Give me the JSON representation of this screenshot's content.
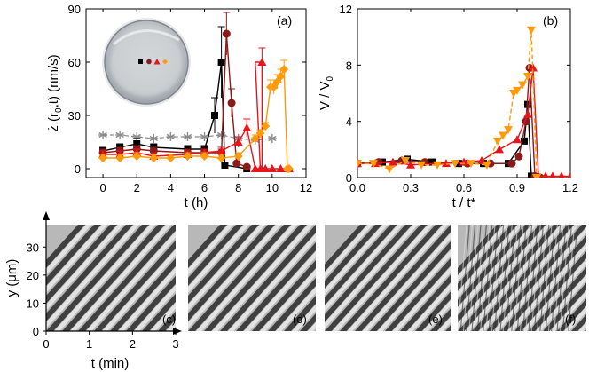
{
  "colors": {
    "black": "#000000",
    "darkred": "#8b1a1a",
    "red": "#e8141c",
    "orange": "#ff9a0a",
    "grey": "#8c8c8c"
  },
  "chart_data": [
    {
      "id": "a",
      "type": "line",
      "panel_label": "(a)",
      "xlabel": "t (h)",
      "ylabel_main": "ż (r",
      "ylabel_sub": "0",
      "ylabel_tail": ",t) (nm/s)",
      "xlim": [
        -1,
        12
      ],
      "ylim": [
        -5,
        90
      ],
      "xticks": [
        "0",
        "2",
        "4",
        "6",
        "8",
        "10",
        "12"
      ],
      "xtick_values": [
        0,
        2,
        4,
        6,
        8,
        10,
        12
      ],
      "yticks": [
        "0",
        "30",
        "60",
        "90"
      ],
      "ytick_values": [
        0,
        30,
        60,
        90
      ],
      "inset": "photo of petri dish with four colored marker dots",
      "series": [
        {
          "color": "grey",
          "marker": "asterisk",
          "dashed": true,
          "x": [
            0,
            1,
            2,
            3,
            4,
            5,
            6,
            7,
            8,
            9,
            10
          ],
          "y": [
            19,
            19,
            18,
            17,
            18,
            18,
            18,
            19,
            17,
            16,
            17
          ]
        },
        {
          "color": "black",
          "marker": "square",
          "x": [
            0,
            1,
            2,
            3,
            5,
            6,
            6.6,
            7.0,
            7.2,
            8.5
          ],
          "y": [
            10,
            12,
            14,
            12,
            11,
            11,
            30,
            60,
            2,
            0
          ],
          "err": [
            2,
            2,
            3,
            2,
            2,
            2,
            10,
            20,
            1,
            0
          ]
        },
        {
          "color": "darkred",
          "marker": "circle",
          "x": [
            0,
            1,
            2,
            3,
            5,
            6,
            7,
            7.3,
            7.6,
            7.9,
            8.5
          ],
          "y": [
            9,
            10,
            11,
            10,
            9,
            9,
            9,
            76,
            37,
            3,
            1
          ],
          "err": [
            2,
            2,
            2,
            2,
            2,
            2,
            2,
            12,
            8,
            1,
            0
          ]
        },
        {
          "color": "red",
          "marker": "triangle",
          "x": [
            0,
            1,
            2,
            3,
            5,
            6,
            7,
            8,
            8.5,
            9,
            9.3,
            9.6,
            10,
            10.5,
            11
          ],
          "y": [
            8,
            8,
            9,
            7,
            8,
            9,
            10,
            15,
            23,
            0,
            0,
            0,
            0,
            0,
            0
          ],
          "err": [
            2,
            2,
            2,
            2,
            2,
            2,
            2,
            3,
            5,
            0,
            0,
            0,
            0,
            0,
            0
          ],
          "end_point": [
            9.4,
            60
          ],
          "end_err": 8
        },
        {
          "color": "orange",
          "marker": "diamond",
          "x": [
            0,
            1,
            2,
            3,
            4,
            5,
            6,
            7,
            8,
            9,
            9.3,
            9.6,
            9.9,
            10.1,
            10.3,
            10.5,
            10.7,
            10.9,
            11
          ],
          "y": [
            6,
            6,
            7,
            6,
            6,
            7,
            7,
            6,
            7,
            17,
            20,
            24,
            46,
            46,
            49,
            52,
            56,
            0,
            0
          ],
          "err": [
            2,
            2,
            2,
            2,
            2,
            2,
            2,
            2,
            2,
            2,
            2,
            2,
            4,
            4,
            4,
            4,
            5,
            0,
            0
          ]
        }
      ]
    },
    {
      "id": "b",
      "type": "line",
      "panel_label": "(b)",
      "xlabel": "t / t*",
      "ylabel_main": "V / V",
      "ylabel_sub": "0",
      "xlim": [
        0,
        1.2
      ],
      "ylim": [
        0,
        12
      ],
      "xticks": [
        "0.0",
        "0.3",
        "0.6",
        "0.9",
        "1.2"
      ],
      "xtick_values": [
        0,
        0.3,
        0.6,
        0.9,
        1.2
      ],
      "yticks": [
        "0",
        "4",
        "8",
        "12"
      ],
      "ytick_values": [
        0,
        4,
        8,
        12
      ],
      "series": [
        {
          "color": "black",
          "marker": "square",
          "x": [
            0.0,
            0.14,
            0.28,
            0.42,
            0.57,
            0.71,
            0.85,
            0.94,
            0.96,
            0.98,
            1.01
          ],
          "y": [
            1.0,
            1.1,
            1.3,
            1.1,
            1.0,
            1.0,
            1.0,
            2.6,
            5.2,
            0.1,
            0.0
          ]
        },
        {
          "color": "darkred",
          "marker": "circle",
          "x": [
            0.0,
            0.12,
            0.25,
            0.38,
            0.62,
            0.75,
            0.87,
            0.91,
            0.95,
            0.97,
            1.0,
            1.03
          ],
          "y": [
            1.0,
            1.1,
            1.2,
            1.1,
            1.0,
            1.0,
            1.0,
            1.5,
            4.0,
            7.8,
            0.1,
            0.0
          ]
        },
        {
          "color": "red",
          "marker": "triangle",
          "x": [
            0.0,
            0.1,
            0.2,
            0.3,
            0.5,
            0.6,
            0.7,
            0.8,
            0.9,
            0.96,
            0.99,
            1.02,
            1.06,
            1.1,
            1.15,
            1.2
          ],
          "y": [
            1.0,
            1.0,
            1.1,
            0.9,
            1.0,
            1.1,
            1.2,
            2.0,
            2.7,
            4.5,
            7.8,
            0.1,
            0.1,
            0.1,
            0.1,
            0.1
          ]
        },
        {
          "color": "orange",
          "marker": "invtriangle",
          "dashed": true,
          "x": [
            0.0,
            0.09,
            0.18,
            0.27,
            0.36,
            0.45,
            0.55,
            0.64,
            0.73,
            0.79,
            0.82,
            0.85,
            0.88,
            0.9,
            0.93,
            0.96,
            0.98,
            1.01
          ],
          "y": [
            1.0,
            1.0,
            0.6,
            1.2,
            0.9,
            0.9,
            1.0,
            1.0,
            0.9,
            2.6,
            3.0,
            3.4,
            6.0,
            6.2,
            6.6,
            7.2,
            10.5,
            0.0
          ]
        }
      ]
    }
  ],
  "kymographs": {
    "ylabel": "y (μm)",
    "xlabel": "t (min)",
    "yticks": [
      "0",
      "10",
      "20",
      "30"
    ],
    "ytick_values": [
      0,
      10,
      20,
      30
    ],
    "xticks": [
      "0",
      "1",
      "2",
      "3"
    ],
    "xtick_values": [
      0,
      1,
      2,
      3
    ],
    "panels": [
      {
        "label": "(c)"
      },
      {
        "label": "(d)"
      },
      {
        "label": "(e)"
      },
      {
        "label": "(f)"
      }
    ]
  }
}
